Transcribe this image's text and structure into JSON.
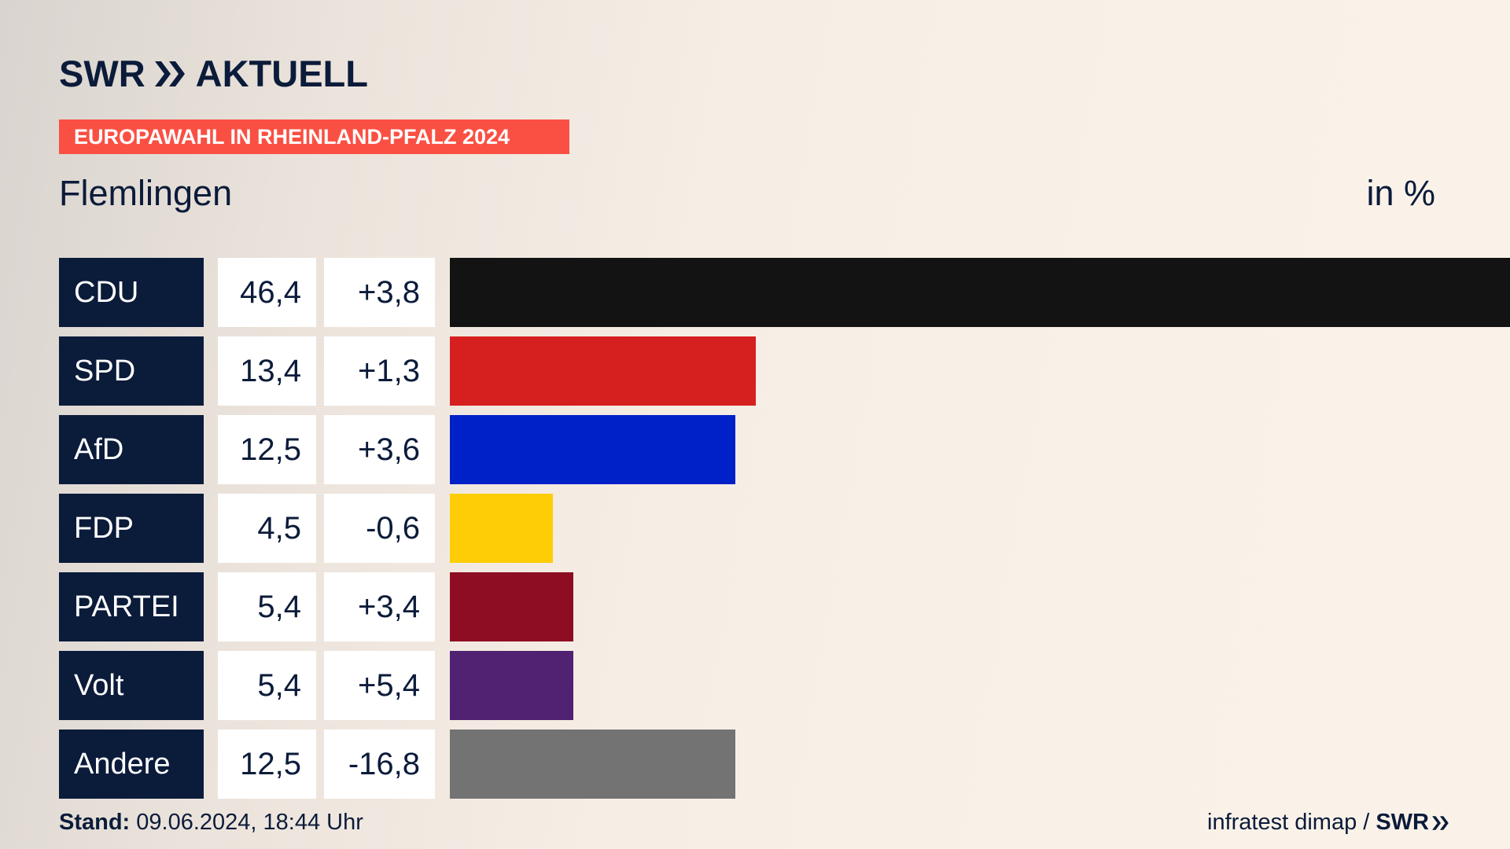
{
  "header": {
    "brand": "SWR",
    "brand_suffix": "AKTUELL",
    "banner": "EUROPAWAHL IN RHEINLAND-PFALZ 2024",
    "region": "Flemlingen",
    "unit": "in %"
  },
  "colors": {
    "navy": "#0b1b3a",
    "banner": "#fa5043"
  },
  "chart_data": {
    "type": "bar",
    "orientation": "horizontal",
    "title": "Flemlingen",
    "unit": "in %",
    "xlim": [
      0,
      46.4
    ],
    "categories": [
      "CDU",
      "SPD",
      "AfD",
      "FDP",
      "PARTEI",
      "Volt",
      "Andere"
    ],
    "values": [
      46.4,
      13.4,
      12.5,
      4.5,
      5.4,
      5.4,
      12.5
    ],
    "value_labels": [
      "46,4",
      "13,4",
      "12,5",
      "4,5",
      "5,4",
      "5,4",
      "12,5"
    ],
    "changes": [
      "+3,8",
      "+1,3",
      "+3,6",
      "-0,6",
      "+3,4",
      "+5,4",
      "-16,8"
    ],
    "colors": [
      "#131313",
      "#d61f1f",
      "#0020c8",
      "#fecd06",
      "#8e0d22",
      "#512272",
      "#737373"
    ]
  },
  "footer": {
    "stand_label": "Stand:",
    "stand_value": " 09.06.2024, 18:44 Uhr",
    "source": "infratest dimap /",
    "source_brand": "SWR"
  }
}
